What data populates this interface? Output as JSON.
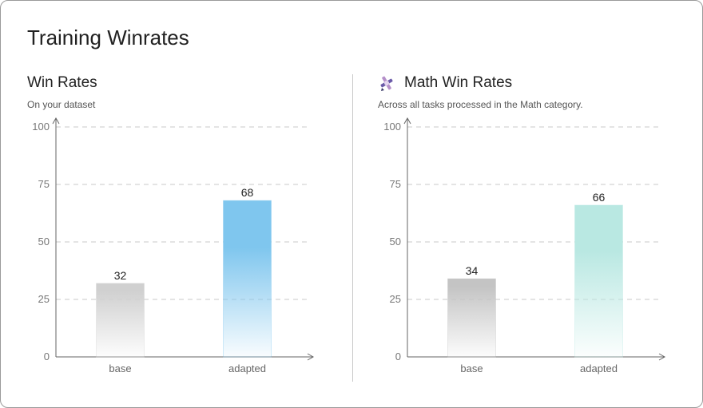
{
  "page": {
    "title": "Training Winrates"
  },
  "chart_data": [
    {
      "type": "bar",
      "title": "Win Rates",
      "subtitle": "On your dataset",
      "categories": [
        "base",
        "adapted"
      ],
      "values": [
        32,
        68
      ],
      "ylim": [
        0,
        100
      ],
      "yticks": [
        0,
        25,
        50,
        75,
        100
      ],
      "grid": true,
      "colors": [
        "#d0d0d0",
        "#7fc6ee"
      ]
    },
    {
      "type": "bar",
      "title": "Math Win Rates",
      "subtitle": "Across all tasks processed in the Math category.",
      "icon": "math-icon",
      "categories": [
        "base",
        "adapted"
      ],
      "values": [
        34,
        66
      ],
      "ylim": [
        0,
        100
      ],
      "yticks": [
        0,
        25,
        50,
        75,
        100
      ],
      "grid": true,
      "colors": [
        "#c4c4c4",
        "#b9e8e2"
      ]
    }
  ]
}
